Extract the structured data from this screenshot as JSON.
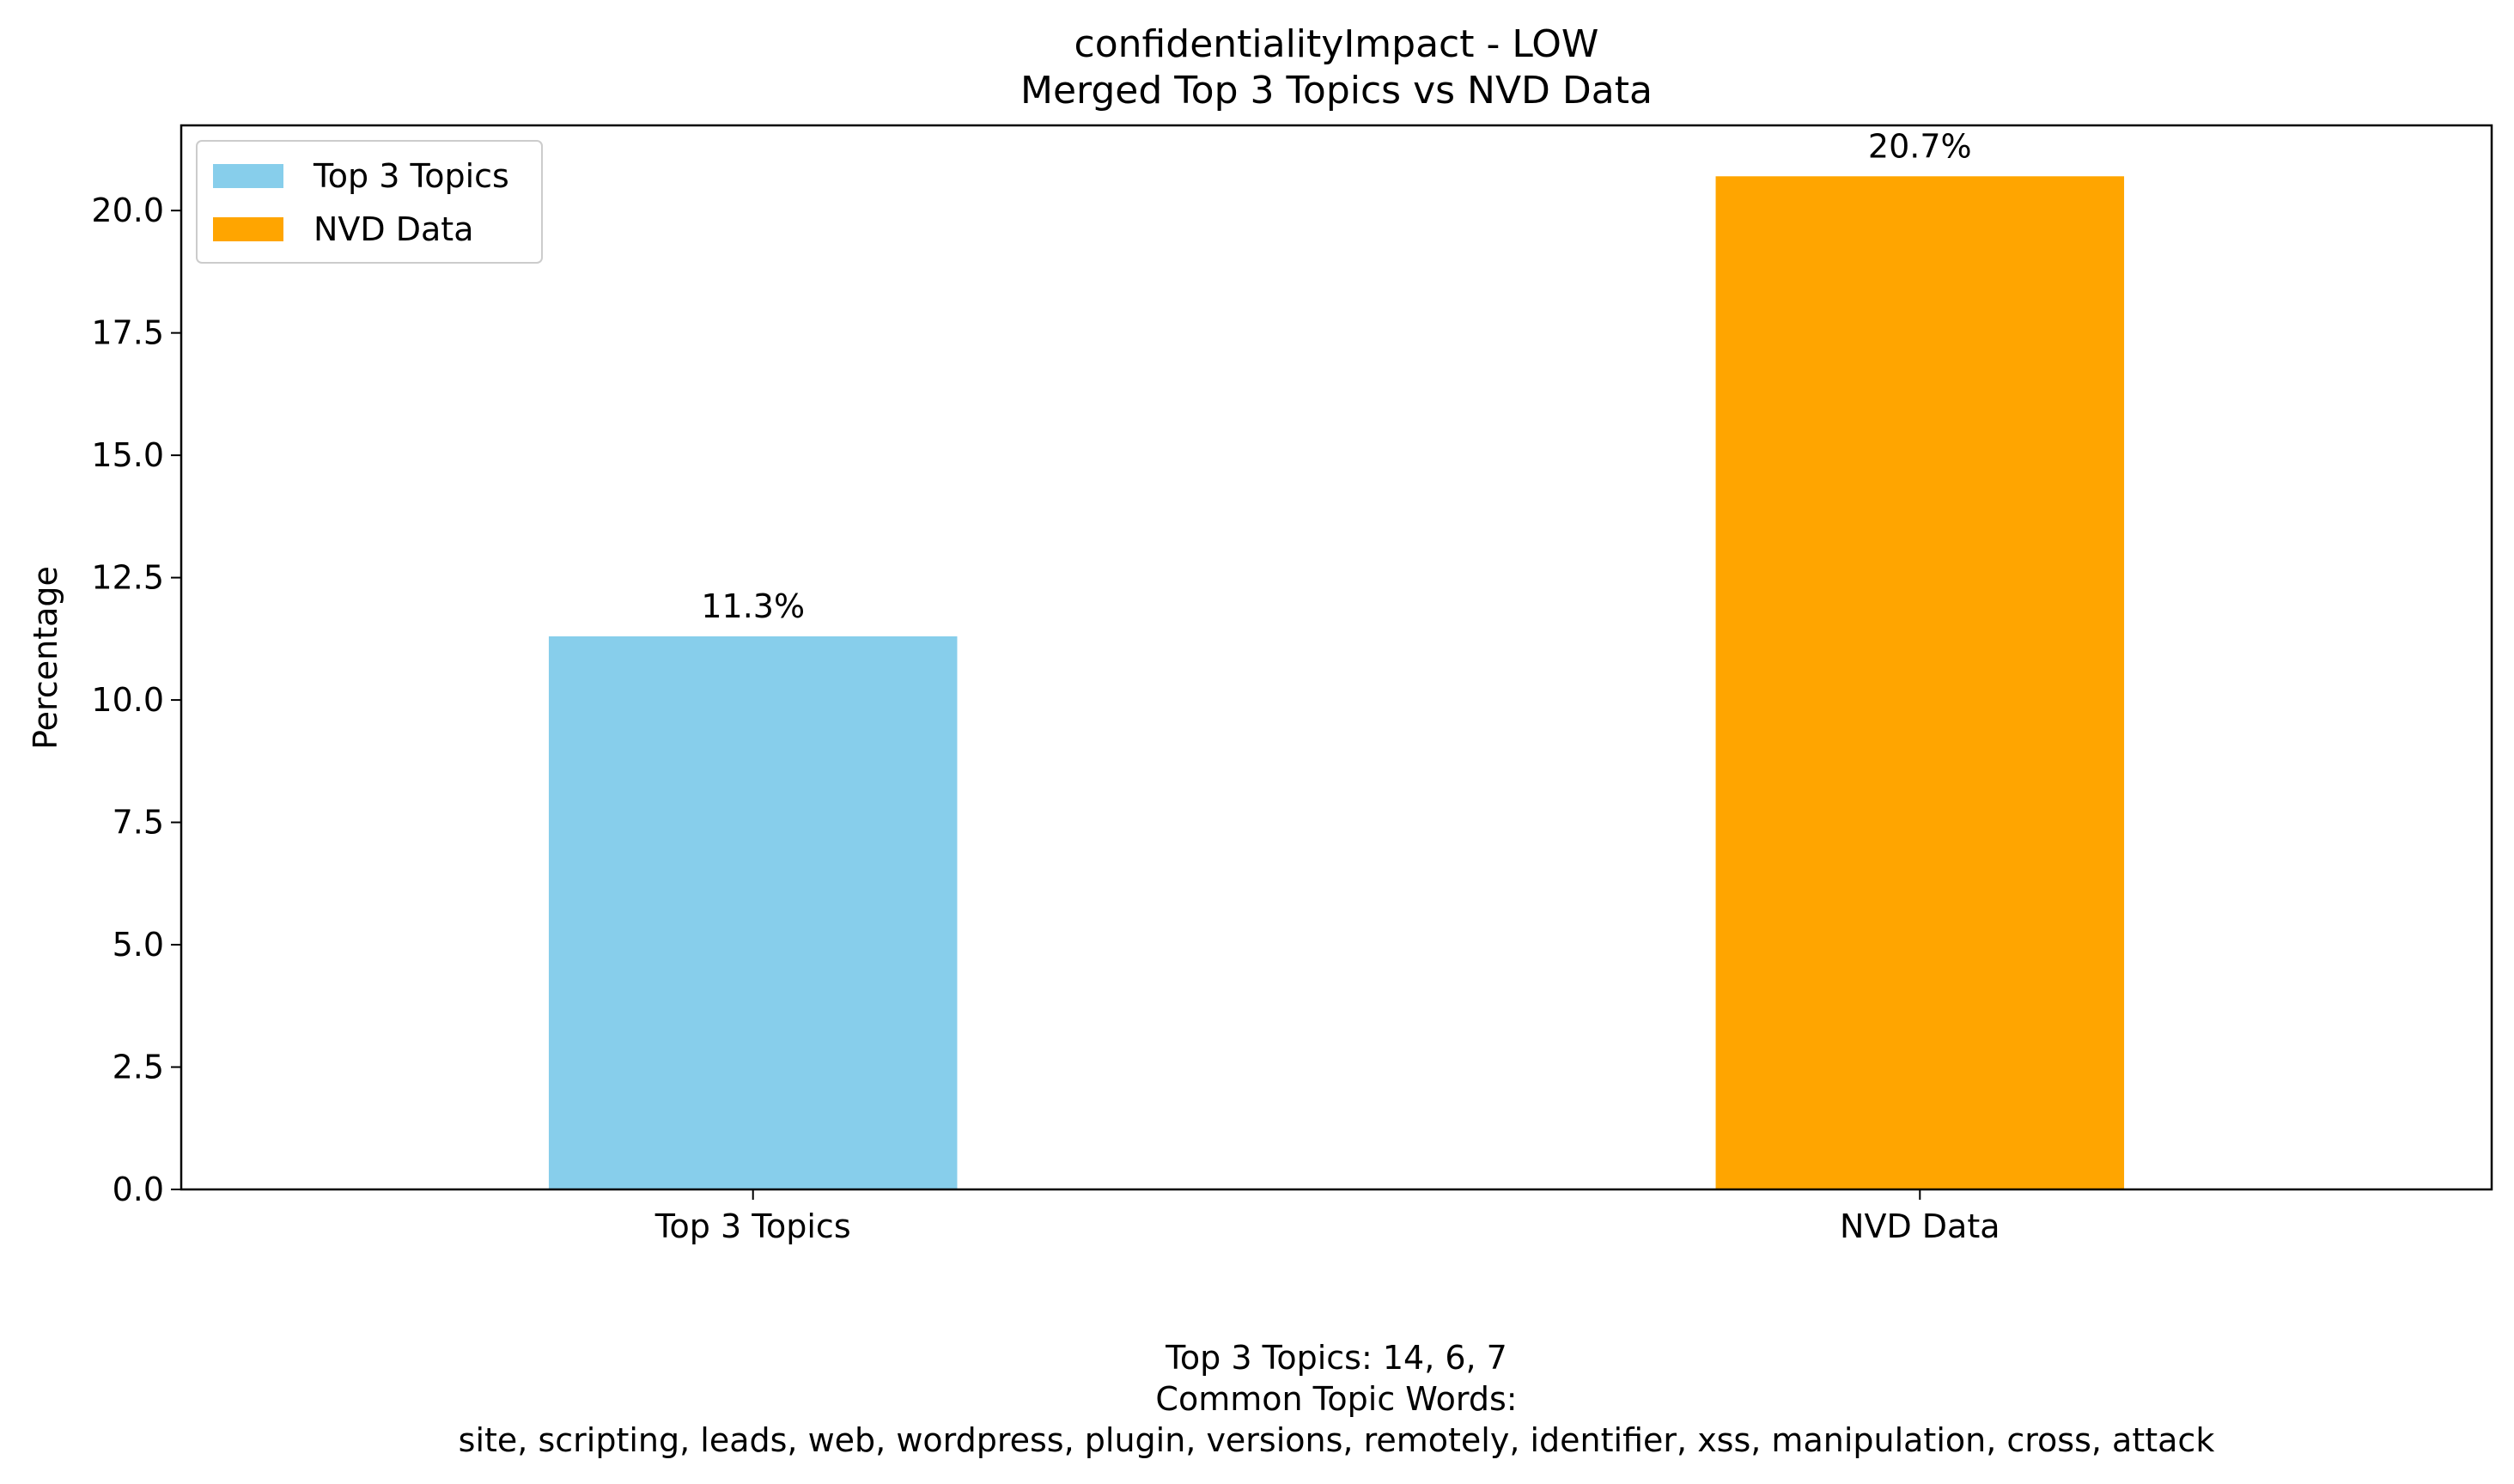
{
  "chart_data": {
    "type": "bar",
    "title": "confidentialityImpact - LOW",
    "subtitle": "Merged Top 3 Topics vs NVD Data",
    "xlabel": "",
    "ylabel": "Percentage",
    "categories": [
      "Top 3 Topics",
      "NVD Data"
    ],
    "values": [
      11.3,
      20.7
    ],
    "value_labels": [
      "11.3%",
      "20.7%"
    ],
    "colors": [
      "#87CEEB",
      "#FFA500"
    ],
    "ylim": [
      0,
      21.74
    ],
    "yticks": [
      0.0,
      2.5,
      5.0,
      7.5,
      10.0,
      12.5,
      15.0,
      17.5,
      20.0
    ],
    "ytick_labels": [
      "0.0",
      "2.5",
      "5.0",
      "7.5",
      "10.0",
      "12.5",
      "15.0",
      "17.5",
      "20.0"
    ],
    "grid": false,
    "legend": {
      "placement": "upper-left",
      "entries": [
        {
          "label": "Top 3 Topics",
          "color": "#87CEEB"
        },
        {
          "label": "NVD Data",
          "color": "#FFA500"
        }
      ]
    }
  },
  "caption": {
    "line1": "Top 3 Topics: 14, 6, 7",
    "line2": "Common Topic Words:",
    "line3": "site,  scripting,  leads,  web,  wordpress,  plugin,  versions,  remotely,  identifier,  xss,  manipulation,  cross,  attack"
  }
}
